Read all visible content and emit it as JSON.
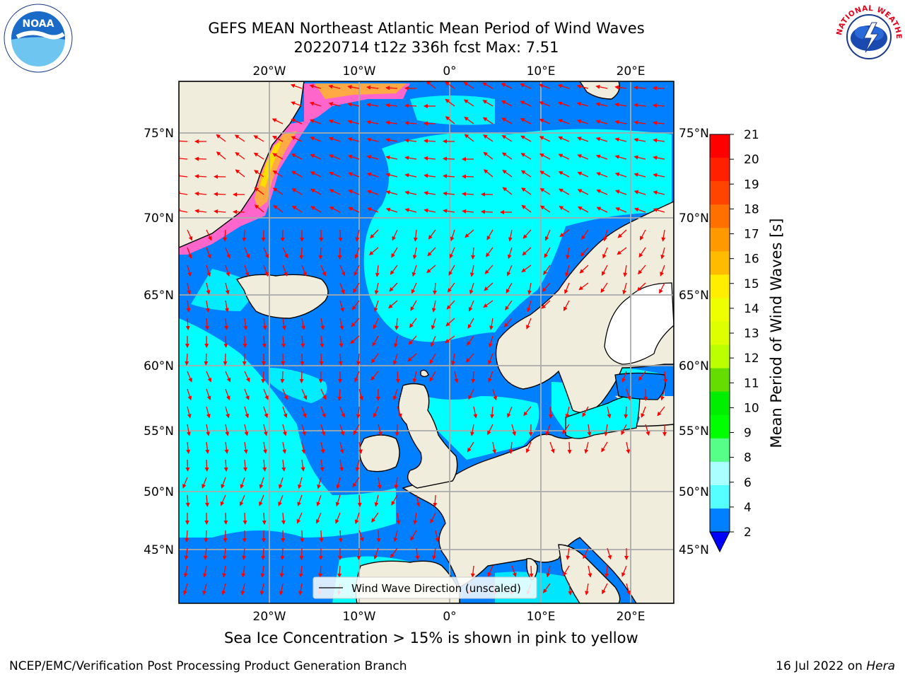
{
  "title": {
    "line1": "GEFS MEAN Northeast Atlantic Mean Period of Wind Waves",
    "line2": "20220714 t12z 336h fcst   Max: 7.51"
  },
  "map": {
    "lon_labels": [
      "20°W",
      "10°W",
      "0°",
      "10°E",
      "20°E"
    ],
    "lat_labels": [
      "75°N",
      "70°N",
      "65°N",
      "60°N",
      "55°N",
      "50°N",
      "45°N"
    ],
    "legend_label": "Wind Wave Direction (unscaled)",
    "arrow_color": "#ff0000",
    "land_color": "#f0eddc",
    "ocean_dark": "#0080ff",
    "ocean_light": "#00ffff"
  },
  "colorbar": {
    "label": "Mean Period of Wind Waves [s]",
    "ticks": [
      "21",
      "20",
      "19",
      "18",
      "17",
      "16",
      "15",
      "14",
      "13",
      "12",
      "11",
      "10",
      "9",
      "8",
      "6",
      "4",
      "2"
    ],
    "colors": [
      "#ff0000",
      "#ff2000",
      "#ff4400",
      "#ff7000",
      "#ff9900",
      "#ffbb00",
      "#ffee00",
      "#eeff00",
      "#ddff00",
      "#bbff00",
      "#66dd00",
      "#00ee00",
      "#00ff00",
      "#55ff88",
      "#aaffff",
      "#55ffff",
      "#00ffff",
      "#0080ff"
    ]
  },
  "caption": "Sea Ice Concentration > 15% is shown in pink to yellow",
  "footer": {
    "left": "NCEP/EMC/Verification Post Processing Product Generation Branch",
    "date": "16 Jul 2022 on",
    "host": "Hera"
  },
  "logos": {
    "noaa_text": "NOAA",
    "nws_text": "NATIONAL WEATHER SERVICE"
  }
}
